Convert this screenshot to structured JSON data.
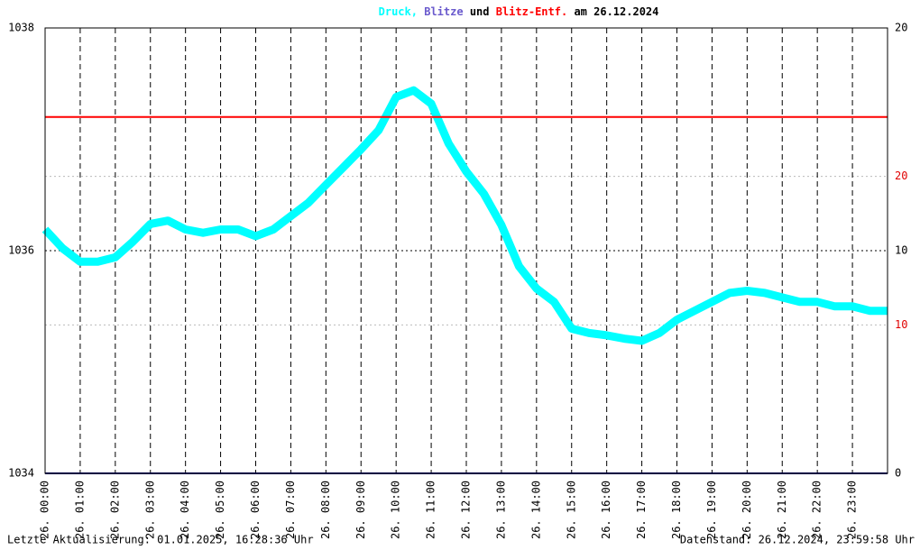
{
  "chart_data": {
    "type": "line",
    "series": [
      {
        "name": "Druck,",
        "color": "#00ffff",
        "axis": "y",
        "x": [
          0,
          0.5,
          1,
          1.5,
          2,
          2.5,
          3,
          3.5,
          4,
          4.5,
          5,
          5.5,
          6,
          6.5,
          7,
          7.5,
          8,
          8.5,
          9,
          9.5,
          10,
          10.5,
          11,
          11.5,
          12,
          12.5,
          13,
          13.5,
          14,
          14.5,
          15,
          15.5,
          16,
          16.5,
          17,
          17.5,
          18,
          19.5,
          20,
          20.5,
          21,
          21.5,
          22,
          22.5,
          23,
          23.5,
          24
        ],
        "values": [
          1036.19,
          1036.02,
          1035.9,
          1035.9,
          1035.94,
          1036.08,
          1036.24,
          1036.27,
          1036.19,
          1036.16,
          1036.19,
          1036.19,
          1036.13,
          1036.19,
          1036.31,
          1036.43,
          1036.59,
          1036.75,
          1036.91,
          1037.08,
          1037.38,
          1037.44,
          1037.32,
          1036.96,
          1036.71,
          1036.51,
          1036.23,
          1035.86,
          1035.66,
          1035.54,
          1035.3,
          1035.26,
          1035.24,
          1035.21,
          1035.19,
          1035.26,
          1035.38,
          1035.62,
          1035.64,
          1035.62,
          1035.58,
          1035.54,
          1035.54,
          1035.5,
          1035.5,
          1035.46,
          1035.46
        ]
      },
      {
        "name": "Blitze",
        "color": "#000080",
        "axis": "y2",
        "x": [
          0,
          24
        ],
        "values": [
          0,
          0
        ]
      },
      {
        "name": "Blitz-Entf.",
        "color": "#ff0000",
        "axis": "y3",
        "x": [
          0,
          24
        ],
        "values": [
          24,
          24
        ]
      }
    ],
    "title_joiner": "und",
    "title_suffix": "am 26.12.2024",
    "xlim": [
      0,
      24
    ],
    "xticks": [
      {
        "value": 0,
        "label": "26. 00:00"
      },
      {
        "value": 1,
        "label": "26. 01:00"
      },
      {
        "value": 2,
        "label": "26. 02:00"
      },
      {
        "value": 3,
        "label": "26. 03:00"
      },
      {
        "value": 4,
        "label": "26. 04:00"
      },
      {
        "value": 5,
        "label": "26. 05:00"
      },
      {
        "value": 6,
        "label": "26. 06:00"
      },
      {
        "value": 7,
        "label": "26. 07:00"
      },
      {
        "value": 8,
        "label": "26. 08:00"
      },
      {
        "value": 9,
        "label": "26. 09:00"
      },
      {
        "value": 10,
        "label": "26. 10:00"
      },
      {
        "value": 11,
        "label": "26. 11:00"
      },
      {
        "value": 12,
        "label": "26. 12:00"
      },
      {
        "value": 13,
        "label": "26. 13:00"
      },
      {
        "value": 14,
        "label": "26. 14:00"
      },
      {
        "value": 15,
        "label": "26. 15:00"
      },
      {
        "value": 16,
        "label": "26. 16:00"
      },
      {
        "value": 17,
        "label": "26. 17:00"
      },
      {
        "value": 18,
        "label": "26. 18:00"
      },
      {
        "value": 19,
        "label": "26. 19:00"
      },
      {
        "value": 20,
        "label": "26. 20:00"
      },
      {
        "value": 21,
        "label": "26. 21:00"
      },
      {
        "value": 22,
        "label": "26. 22:00"
      },
      {
        "value": 23,
        "label": "26. 23:00"
      }
    ],
    "ylim": [
      1034,
      1038
    ],
    "yticks": [
      1034,
      1036,
      1038
    ],
    "y2lim": [
      0,
      20
    ],
    "y2ticks": [
      0,
      10,
      20
    ],
    "y3lim": [
      0,
      30
    ],
    "y3ticks": [
      10,
      20
    ],
    "footer_left": "Letzte Aktualisierung: 01.01.2025, 16:28:36 Uhr",
    "footer_right": "Datenstand: 26.12.2024, 23:59:58 Uhr"
  }
}
